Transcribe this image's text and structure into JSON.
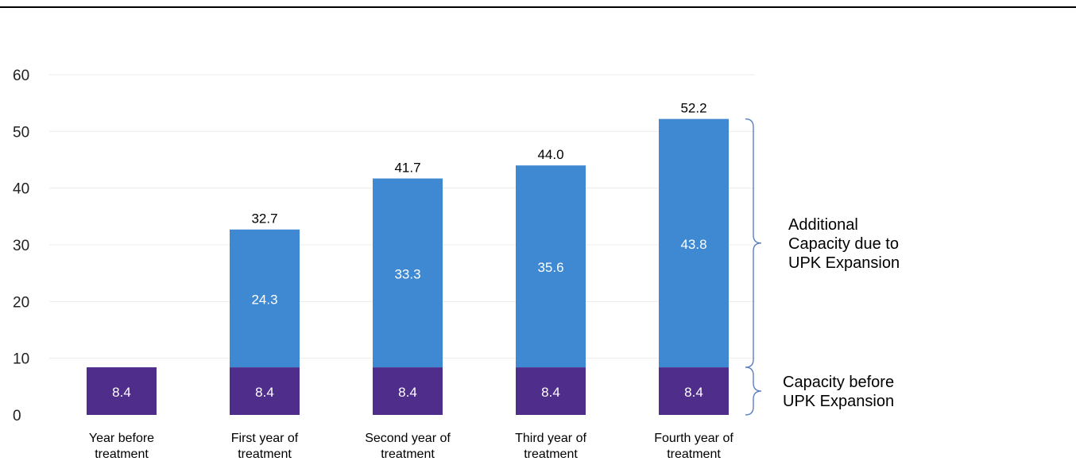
{
  "chart_data": {
    "type": "bar",
    "stacked": true,
    "categories": [
      [
        "Year before",
        "treatment"
      ],
      [
        "First year of",
        "treatment"
      ],
      [
        "Second year of",
        "treatment"
      ],
      [
        "Third year of",
        "treatment"
      ],
      [
        "Fourth year of",
        "treatment"
      ]
    ],
    "series": [
      {
        "values": [
          8.4,
          8.4,
          8.4,
          8.4,
          8.4
        ],
        "color": "#4f2d8a",
        "label_color": "#ffffff"
      },
      {
        "values": [
          null,
          24.3,
          33.3,
          35.6,
          43.8
        ],
        "color": "#3f88d2",
        "label_color": "#ffffff"
      }
    ],
    "totals": [
      "",
      "32.7",
      "41.7",
      "44.0",
      "52.2"
    ],
    "ylim": [
      0,
      60
    ],
    "yticks": [
      0,
      10,
      20,
      30,
      40,
      50,
      60
    ],
    "grid": true,
    "annotations": [
      {
        "lines": [
          "Additional",
          "Capacity due to",
          "UPK Expansion"
        ],
        "from": 8.4,
        "to": 52.2
      },
      {
        "lines": [
          "Capacity before",
          "UPK Expansion"
        ],
        "from": 0,
        "to": 8.4
      }
    ]
  }
}
